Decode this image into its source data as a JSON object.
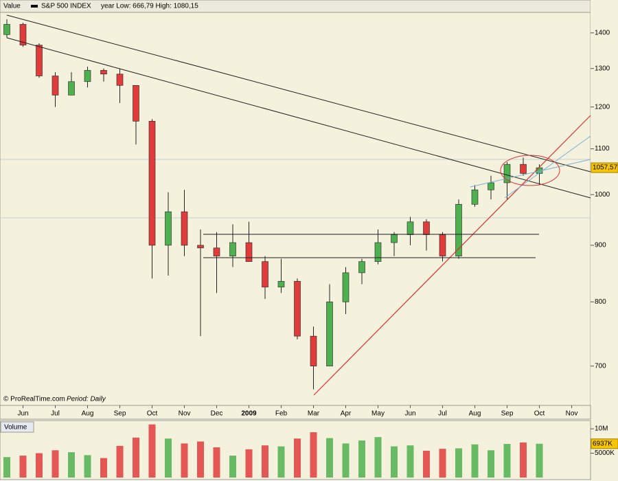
{
  "chart_data": [
    {
      "type": "candlestick",
      "header": "Value",
      "series_name": "S&P 500 INDEX",
      "stats": "year Low: 666,79 High: 1080,15",
      "source": "© ProRealTime.com",
      "period": "Period: Daily",
      "categories": [
        null,
        "Jun",
        null,
        "Jul",
        null,
        "Aug",
        null,
        "Sep",
        null,
        "Oct",
        null,
        "Nov",
        null,
        "Dec",
        null,
        "2009",
        null,
        "Feb",
        null,
        "Mar",
        null,
        "Apr",
        null,
        "May",
        null,
        "Jun",
        null,
        "Jul",
        null,
        "Aug",
        null,
        "Sep",
        null,
        "Oct",
        null,
        "Nov"
      ],
      "ohlc": [
        [
          1395,
          1440,
          1385,
          1425
        ],
        [
          1425,
          1430,
          1360,
          1365
        ],
        [
          1365,
          1370,
          1275,
          1280
        ],
        [
          1280,
          1290,
          1200,
          1230
        ],
        [
          1230,
          1290,
          1230,
          1265
        ],
        [
          1265,
          1305,
          1250,
          1295
        ],
        [
          1295,
          1300,
          1265,
          1285
        ],
        [
          1285,
          1300,
          1210,
          1255
        ],
        [
          1255,
          1255,
          1110,
          1165
        ],
        [
          1165,
          1170,
          840,
          900
        ],
        [
          900,
          1005,
          845,
          965
        ],
        [
          965,
          1010,
          880,
          900
        ],
        [
          900,
          930,
          745,
          895
        ],
        [
          895,
          925,
          815,
          880
        ],
        [
          880,
          940,
          860,
          905
        ],
        [
          905,
          945,
          870,
          870
        ],
        [
          870,
          880,
          805,
          825
        ],
        [
          825,
          875,
          815,
          835
        ],
        [
          835,
          840,
          740,
          745
        ],
        [
          745,
          760,
          667,
          700
        ],
        [
          700,
          830,
          700,
          800
        ],
        [
          800,
          860,
          780,
          850
        ],
        [
          850,
          875,
          830,
          870
        ],
        [
          870,
          930,
          865,
          905
        ],
        [
          905,
          925,
          880,
          920
        ],
        [
          920,
          955,
          900,
          945
        ],
        [
          945,
          950,
          890,
          920
        ],
        [
          920,
          925,
          870,
          880
        ],
        [
          880,
          990,
          875,
          980
        ],
        [
          980,
          1020,
          975,
          1010
        ],
        [
          1010,
          1040,
          990,
          1025
        ],
        [
          1025,
          1070,
          990,
          1065
        ],
        [
          1065,
          1080,
          1040,
          1045
        ],
        [
          1045,
          1065,
          1020,
          1057.57
        ],
        null,
        null
      ],
      "last_label": "1057,57",
      "up_color": "#4fb04f",
      "down_color": "#e03c3c",
      "log_scale": true,
      "ylim": [
        645,
        1461
      ],
      "yticks": [
        700,
        800,
        900,
        1000,
        1100,
        1200,
        1300,
        1400
      ]
    },
    {
      "type": "bar",
      "title": "Volume",
      "values": [
        4200000,
        4500000,
        5000000,
        5600000,
        5200000,
        4600000,
        4000000,
        6500000,
        8200000,
        10900000,
        8000000,
        7000000,
        7400000,
        6200000,
        4500000,
        5800000,
        6600000,
        6400000,
        8000000,
        9300000,
        8100000,
        7000000,
        7600000,
        8300000,
        6400000,
        6600000,
        5500000,
        5900000,
        6000000,
        6800000,
        5600000,
        6900000,
        7200000,
        6937000,
        null,
        null
      ],
      "value_labels": [
        null,
        null,
        null,
        null,
        null,
        null,
        null,
        null,
        null,
        null,
        null,
        null,
        null,
        null,
        null,
        null,
        null,
        null,
        null,
        null,
        null,
        null,
        null,
        null,
        null,
        null,
        null,
        null,
        null,
        null,
        null,
        null,
        null,
        "6937K",
        null,
        null
      ],
      "ylim": [
        0,
        11700000
      ],
      "yticks": [
        {
          "value": 5000000,
          "label": "5000K"
        },
        {
          "value": 10000000,
          "label": "10M"
        }
      ]
    }
  ]
}
